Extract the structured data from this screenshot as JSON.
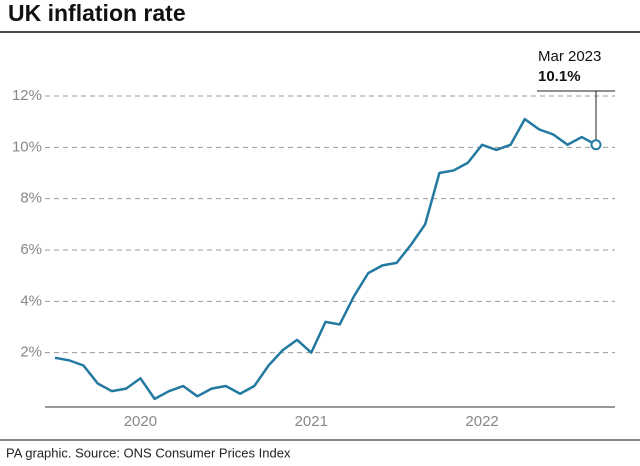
{
  "chart_data": {
    "type": "line",
    "title": "UK inflation rate",
    "source": "PA graphic. Source: ONS Consumer Prices Index",
    "categories": [
      null,
      null,
      null,
      null,
      null,
      null,
      "2020",
      null,
      null,
      null,
      null,
      null,
      null,
      null,
      null,
      null,
      null,
      null,
      "2021",
      null,
      null,
      null,
      null,
      null,
      null,
      null,
      null,
      null,
      null,
      null,
      "2022",
      null,
      null,
      null,
      null,
      null,
      null,
      null,
      null
    ],
    "series": [
      {
        "name": "UK inflation rate",
        "color": "#23799f",
        "values": [
          1.8,
          1.7,
          1.5,
          0.8,
          0.5,
          0.6,
          1.0,
          0.2,
          0.5,
          0.7,
          0.3,
          0.6,
          0.7,
          0.4,
          0.7,
          1.5,
          2.1,
          2.5,
          2.0,
          3.2,
          3.1,
          4.2,
          5.1,
          5.4,
          5.5,
          6.2,
          7.0,
          9.0,
          9.1,
          9.4,
          10.1,
          9.9,
          10.1,
          11.1,
          10.7,
          10.5,
          10.1,
          10.4,
          10.1
        ]
      }
    ],
    "annotation": {
      "date": "Mar 2023",
      "text": "10.1%"
    },
    "ylim": [
      0,
      12
    ],
    "yticks": [
      {
        "value": 2,
        "label": "2%"
      },
      {
        "value": 4,
        "label": "4%"
      },
      {
        "value": 6,
        "label": "6%"
      },
      {
        "value": 8,
        "label": "8%"
      },
      {
        "value": 10,
        "label": "10%"
      },
      {
        "value": 12,
        "label": "12%"
      }
    ],
    "grid": true
  }
}
